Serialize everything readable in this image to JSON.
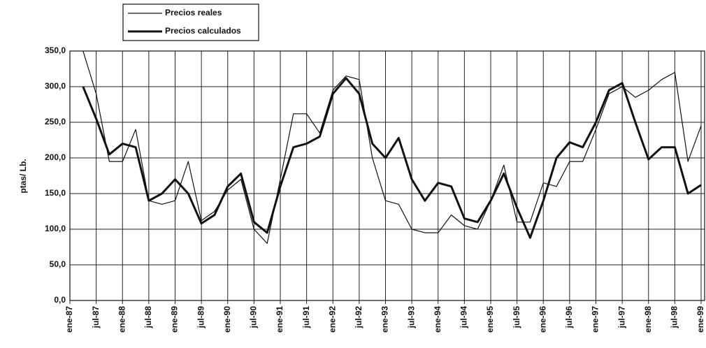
{
  "chart_data": {
    "type": "line",
    "ylabel": "ptas/ Lb.",
    "categories": [
      "ene-87",
      null,
      "jul-87",
      null,
      "ene-88",
      null,
      "jul-88",
      null,
      "ene-89",
      null,
      "jul-89",
      null,
      "ene-90",
      null,
      "jul-90",
      null,
      "ene-91",
      null,
      "jul-91",
      null,
      "ene-92",
      null,
      "jul-92",
      null,
      "ene-93",
      null,
      "jul-93",
      null,
      "ene-94",
      null,
      "jul-94",
      null,
      "ene-95",
      null,
      "jul-95",
      null,
      "ene-96",
      null,
      "jul-96",
      null,
      "ene-97",
      null,
      "jul-97",
      null,
      "ene-98",
      null,
      "jul-98",
      null,
      "ene-99"
    ],
    "series": [
      {
        "name": "Precios reales",
        "color": "#111111",
        "width": 1.2,
        "values": [
          null,
          350,
          290,
          195,
          195,
          240,
          140,
          135,
          140,
          195,
          112,
          125,
          155,
          170,
          100,
          80,
          170,
          262,
          262,
          235,
          295,
          315,
          310,
          200,
          140,
          135,
          100,
          95,
          95,
          120,
          105,
          100,
          140,
          190,
          110,
          110,
          165,
          160,
          195,
          195,
          240,
          290,
          300,
          285,
          295,
          310,
          320,
          195,
          245
        ]
      },
      {
        "name": "Precios calculados",
        "color": "#111111",
        "width": 3,
        "values": [
          null,
          300,
          255,
          205,
          220,
          215,
          140,
          150,
          170,
          150,
          108,
          120,
          160,
          178,
          110,
          95,
          160,
          215,
          220,
          230,
          290,
          312,
          290,
          220,
          200,
          228,
          170,
          140,
          165,
          160,
          115,
          110,
          140,
          178,
          130,
          88,
          140,
          200,
          222,
          215,
          250,
          295,
          305,
          250,
          198,
          215,
          215,
          150,
          162
        ]
      }
    ],
    "ylim": [
      0,
      350
    ],
    "yticks": [
      {
        "value": 0,
        "label": "0,0"
      },
      {
        "value": 50,
        "label": "50,0"
      },
      {
        "value": 100,
        "label": "100,0"
      },
      {
        "value": 150,
        "label": "150,0"
      },
      {
        "value": 200,
        "label": "200,0"
      },
      {
        "value": 250,
        "label": "250,0"
      },
      {
        "value": 300,
        "label": "300,0"
      },
      {
        "value": 350,
        "label": "350,0"
      }
    ],
    "grid": true
  }
}
